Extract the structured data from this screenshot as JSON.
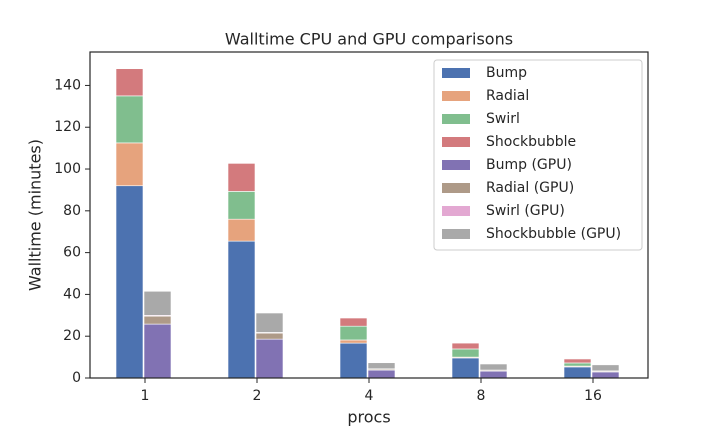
{
  "chart_data": {
    "type": "stacked_grouped_bar",
    "title": "Walltime CPU and GPU comparisons",
    "x_label": "procs",
    "y_label": "Walltime (minutes)",
    "categories": [
      "1",
      "2",
      "4",
      "8",
      "16"
    ],
    "ylim": [
      0,
      156
    ],
    "yticks": [
      0,
      20,
      40,
      60,
      80,
      100,
      120,
      140
    ],
    "legend": "upper right",
    "groups": [
      {
        "series": [
          {
            "name": "Bump",
            "color": "#4c72b0",
            "values": [
              92,
              65.5,
              16.7,
              9.6,
              5.3
            ]
          },
          {
            "name": "Radial",
            "color": "#dd8452",
            "values": [
              20.5,
              10.5,
              1.5,
              0.4,
              0.4
            ]
          },
          {
            "name": "Swirl",
            "color": "#55a868",
            "values": [
              22.5,
              13.3,
              6.6,
              3.9,
              1.5
            ]
          },
          {
            "name": "Shockbubble",
            "color": "#c44e52",
            "values": [
              13,
              13.4,
              3.9,
              2.8,
              1.9
            ]
          }
        ]
      },
      {
        "series": [
          {
            "name": "Bump (GPU)",
            "color": "#8172b3",
            "values": [
              25.8,
              18.6,
              3.8,
              3.3,
              2.9
            ]
          },
          {
            "name": "Radial (GPU)",
            "color": "#937860",
            "values": [
              3.8,
              2.9,
              0.5,
              0.4,
              0.4
            ]
          },
          {
            "name": "Swirl (GPU)",
            "color": "#da8bc3",
            "values": [
              0.4,
              0.3,
              0.1,
              0.1,
              0.1
            ]
          },
          {
            "name": "Shockbubble (GPU)",
            "color": "#8c8c8c",
            "values": [
              11.5,
              9.3,
              2.9,
              2.9,
              2.9
            ]
          }
        ]
      }
    ]
  }
}
